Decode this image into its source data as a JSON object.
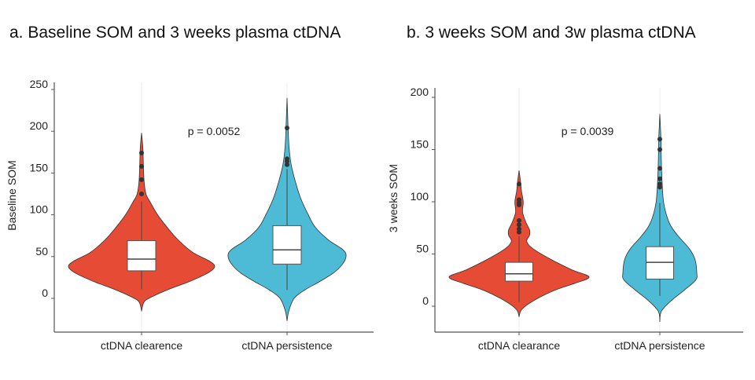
{
  "chart_data": [
    {
      "type": "violin",
      "title": "a. Baseline SOM and 3 weeks plasma ctDNA",
      "xlabel": "",
      "ylabel": "Baseline SOM",
      "ylim": [
        -40,
        255
      ],
      "yticks": [
        0,
        50,
        100,
        150,
        200,
        250
      ],
      "annotation": "p = 0.0052",
      "categories": [
        "ctDNA clearence",
        "ctDNA persistence"
      ],
      "series": [
        {
          "color": "#E64B35",
          "box": {
            "whisker_low": 11,
            "q1": 33,
            "median": 47,
            "q3": 69,
            "whisker_high": 116
          },
          "outliers": [
            125,
            142,
            158,
            174
          ],
          "density": [
            [
              -15,
              0
            ],
            [
              -5,
              0.03
            ],
            [
              0,
              0.1
            ],
            [
              10,
              0.35
            ],
            [
              20,
              0.65
            ],
            [
              30,
              0.9
            ],
            [
              38,
              1
            ],
            [
              45,
              0.92
            ],
            [
              55,
              0.7
            ],
            [
              70,
              0.5
            ],
            [
              85,
              0.35
            ],
            [
              100,
              0.22
            ],
            [
              115,
              0.12
            ],
            [
              125,
              0.06
            ],
            [
              140,
              0.035
            ],
            [
              160,
              0.025
            ],
            [
              180,
              0.018
            ],
            [
              198,
              0
            ]
          ]
        },
        {
          "color": "#4DBBD5",
          "box": {
            "whisker_low": 10,
            "q1": 41,
            "median": 58,
            "q3": 87,
            "whisker_high": 155
          },
          "outliers": [
            160,
            164,
            167,
            204
          ],
          "density": [
            [
              -27,
              0
            ],
            [
              -15,
              0.03
            ],
            [
              0,
              0.12
            ],
            [
              10,
              0.3
            ],
            [
              20,
              0.55
            ],
            [
              30,
              0.78
            ],
            [
              40,
              0.93
            ],
            [
              50,
              1
            ],
            [
              58,
              0.95
            ],
            [
              70,
              0.7
            ],
            [
              85,
              0.48
            ],
            [
              100,
              0.36
            ],
            [
              120,
              0.23
            ],
            [
              140,
              0.14
            ],
            [
              160,
              0.07
            ],
            [
              180,
              0.035
            ],
            [
              200,
              0.02
            ],
            [
              220,
              0.01
            ],
            [
              240,
              0
            ]
          ]
        }
      ]
    },
    {
      "type": "violin",
      "title": "b. 3 weeks SOM and 3w plasma ctDNA",
      "xlabel": "",
      "ylabel": "3 weeks SOM",
      "ylim": [
        -25,
        210
      ],
      "yticks": [
        0,
        50,
        100,
        150,
        200
      ],
      "annotation": "p = 0.0039",
      "categories": [
        "ctDNA clearance",
        "ctDNA persistence"
      ],
      "series": [
        {
          "color": "#E64B35",
          "box": {
            "whisker_low": 4,
            "q1": 24,
            "median": 31,
            "q3": 42,
            "whisker_high": 67
          },
          "outliers": [
            71,
            74,
            78,
            82,
            97,
            99,
            102,
            117
          ],
          "density": [
            [
              -10,
              0
            ],
            [
              -3,
              0.04
            ],
            [
              5,
              0.2
            ],
            [
              15,
              0.5
            ],
            [
              22,
              0.8
            ],
            [
              28,
              1
            ],
            [
              35,
              0.75
            ],
            [
              45,
              0.45
            ],
            [
              55,
              0.2
            ],
            [
              62,
              0.11
            ],
            [
              68,
              0.15
            ],
            [
              73,
              0.15
            ],
            [
              80,
              0.1
            ],
            [
              90,
              0.05
            ],
            [
              100,
              0.06
            ],
            [
              110,
              0.035
            ],
            [
              120,
              0.02
            ],
            [
              130,
              0
            ]
          ]
        },
        {
          "color": "#4DBBD5",
          "box": {
            "whisker_low": 10,
            "q1": 26,
            "median": 42,
            "q3": 57,
            "whisker_high": 99
          },
          "outliers": [
            114,
            117,
            122,
            132,
            150,
            160
          ],
          "density": [
            [
              -15,
              0
            ],
            [
              -5,
              0.04
            ],
            [
              5,
              0.3
            ],
            [
              15,
              0.65
            ],
            [
              25,
              0.97
            ],
            [
              32,
              1
            ],
            [
              45,
              0.95
            ],
            [
              55,
              0.8
            ],
            [
              65,
              0.55
            ],
            [
              75,
              0.33
            ],
            [
              85,
              0.2
            ],
            [
              100,
              0.1
            ],
            [
              120,
              0.06
            ],
            [
              140,
              0.04
            ],
            [
              160,
              0.03
            ],
            [
              184,
              0
            ]
          ]
        }
      ]
    }
  ]
}
